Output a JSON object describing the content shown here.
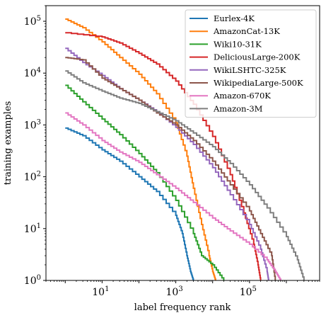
{
  "chart_data": {
    "type": "line",
    "title": "",
    "xlabel": "label frequency rank",
    "ylabel": "training examples",
    "xscale": "log",
    "yscale": "log",
    "xlim": [
      0.3,
      8000000
    ],
    "ylim": [
      1,
      200000
    ],
    "x_ticks": [
      {
        "value": 10,
        "base": "10",
        "exp": "1"
      },
      {
        "value": 1000,
        "base": "10",
        "exp": "3"
      },
      {
        "value": 100000,
        "base": "10",
        "exp": "5"
      }
    ],
    "y_ticks": [
      {
        "value": 1,
        "base": "10",
        "exp": "0"
      },
      {
        "value": 10,
        "base": "10",
        "exp": "1"
      },
      {
        "value": 100,
        "base": "10",
        "exp": "2"
      },
      {
        "value": 1000,
        "base": "10",
        "exp": "3"
      },
      {
        "value": 10000,
        "base": "10",
        "exp": "4"
      },
      {
        "value": 100000,
        "base": "10",
        "exp": "5"
      }
    ],
    "grid": false,
    "legend": "top-right",
    "series": [
      {
        "name": "Eurlex-4K",
        "color": "#1f77b4",
        "points": [
          [
            1,
            870
          ],
          [
            3,
            620
          ],
          [
            10,
            330
          ],
          [
            30,
            200
          ],
          [
            100,
            100
          ],
          [
            300,
            52
          ],
          [
            1000,
            18
          ],
          [
            1500,
            8
          ],
          [
            2000,
            3
          ],
          [
            2500,
            1.5
          ],
          [
            3000,
            1
          ]
        ]
      },
      {
        "name": "AmazonCat-13K",
        "color": "#ff7f0e",
        "points": [
          [
            1,
            110000
          ],
          [
            3,
            75000
          ],
          [
            10,
            40000
          ],
          [
            30,
            20000
          ],
          [
            100,
            9500
          ],
          [
            300,
            4000
          ],
          [
            1000,
            1100
          ],
          [
            2000,
            250
          ],
          [
            3000,
            60
          ],
          [
            5000,
            12
          ],
          [
            8000,
            3
          ],
          [
            10000,
            1.5
          ],
          [
            12000,
            1
          ]
        ]
      },
      {
        "name": "Wiki10-31K",
        "color": "#2ca02c",
        "points": [
          [
            1,
            5800
          ],
          [
            3,
            2800
          ],
          [
            10,
            1300
          ],
          [
            30,
            650
          ],
          [
            100,
            280
          ],
          [
            300,
            120
          ],
          [
            1000,
            35
          ],
          [
            3000,
            8
          ],
          [
            5000,
            3
          ],
          [
            10000,
            2
          ],
          [
            20000,
            1
          ]
        ]
      },
      {
        "name": "DeliciousLarge-200K",
        "color": "#d62728",
        "points": [
          [
            1,
            60000
          ],
          [
            10,
            50000
          ],
          [
            30,
            38000
          ],
          [
            100,
            24000
          ],
          [
            300,
            15000
          ],
          [
            1000,
            7000
          ],
          [
            3000,
            2500
          ],
          [
            10000,
            600
          ],
          [
            30000,
            110
          ],
          [
            70000,
            20
          ],
          [
            130000,
            5
          ],
          [
            170000,
            2
          ],
          [
            200000,
            1
          ]
        ]
      },
      {
        "name": "WikiLSHTC-325K",
        "color": "#9467bd",
        "points": [
          [
            1,
            30000
          ],
          [
            3,
            16000
          ],
          [
            10,
            9000
          ],
          [
            30,
            5000
          ],
          [
            100,
            3000
          ],
          [
            300,
            1800
          ],
          [
            1000,
            900
          ],
          [
            3000,
            420
          ],
          [
            10000,
            150
          ],
          [
            30000,
            45
          ],
          [
            100000,
            12
          ],
          [
            200000,
            4
          ],
          [
            300000,
            1.5
          ],
          [
            330000,
            1
          ]
        ]
      },
      {
        "name": "WikipediaLarge-500K",
        "color": "#8c564b",
        "points": [
          [
            1,
            20000
          ],
          [
            3,
            18000
          ],
          [
            10,
            8000
          ],
          [
            30,
            5000
          ],
          [
            100,
            3000
          ],
          [
            300,
            1700
          ],
          [
            1000,
            1000
          ],
          [
            3000,
            500
          ],
          [
            10000,
            200
          ],
          [
            30000,
            70
          ],
          [
            100000,
            22
          ],
          [
            200000,
            8
          ],
          [
            400000,
            3
          ],
          [
            500000,
            1
          ]
        ]
      },
      {
        "name": "Amazon-670K",
        "color": "#e377c2",
        "points": [
          [
            1,
            1700
          ],
          [
            3,
            1000
          ],
          [
            10,
            500
          ],
          [
            30,
            300
          ],
          [
            100,
            190
          ],
          [
            300,
            110
          ],
          [
            1000,
            60
          ],
          [
            3000,
            32
          ],
          [
            10000,
            16
          ],
          [
            30000,
            9
          ],
          [
            100000,
            5
          ],
          [
            300000,
            2.5
          ],
          [
            500000,
            1.5
          ],
          [
            700000,
            1
          ]
        ]
      },
      {
        "name": "Amazon-3M",
        "color": "#7f7f7f",
        "points": [
          [
            1,
            11000
          ],
          [
            3,
            6500
          ],
          [
            10,
            4500
          ],
          [
            30,
            3300
          ],
          [
            100,
            2600
          ],
          [
            300,
            1800
          ],
          [
            1000,
            1200
          ],
          [
            3000,
            700
          ],
          [
            10000,
            380
          ],
          [
            30000,
            180
          ],
          [
            100000,
            70
          ],
          [
            300000,
            25
          ],
          [
            1000000,
            7
          ],
          [
            2000000,
            2.5
          ],
          [
            3000000,
            1
          ]
        ]
      }
    ]
  }
}
